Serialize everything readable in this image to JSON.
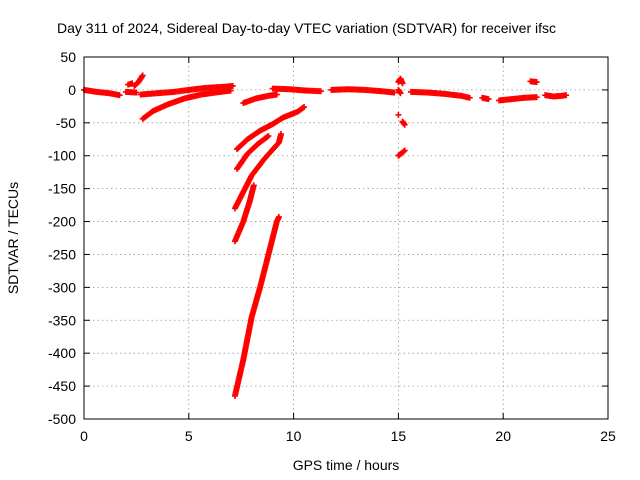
{
  "chart_data": {
    "type": "scatter",
    "title": "Day 311 of 2024, Sidereal Day-to-day VTEC variation (SDTVAR) for receiver ifsc",
    "xlabel": "GPS time / hours",
    "ylabel": "SDTVAR / TECUs",
    "xlim": [
      0,
      25
    ],
    "ylim": [
      -500,
      50
    ],
    "xticks": [
      0,
      5,
      10,
      15,
      20,
      25
    ],
    "yticks": [
      50,
      0,
      -50,
      -100,
      -150,
      -200,
      -250,
      -300,
      -350,
      -400,
      -450,
      -500
    ],
    "x_tick_labels": [
      "0",
      "5",
      "10",
      "15",
      "20",
      "25"
    ],
    "y_tick_labels": [
      "50",
      "0",
      "-50",
      "-100",
      "-150",
      "-200",
      "-250",
      "-300",
      "-350",
      "-400",
      "-450",
      "-500"
    ],
    "grid": true,
    "marker": "plus",
    "color": "#ff0000",
    "series": [
      {
        "arcs": [
          [
            [
              0.0,
              0
            ],
            [
              0.6,
              -3
            ],
            [
              1.2,
              -5
            ],
            [
              1.7,
              -8
            ]
          ],
          [
            [
              2.0,
              -3
            ],
            [
              2.5,
              -4
            ]
          ],
          [
            [
              2.7,
              -7
            ],
            [
              3.5,
              -5
            ],
            [
              4.3,
              -3
            ],
            [
              5.0,
              0
            ],
            [
              5.8,
              3
            ],
            [
              6.8,
              5
            ],
            [
              7.1,
              6
            ]
          ],
          [
            [
              2.8,
              -44
            ],
            [
              3.3,
              -32
            ],
            [
              4.0,
              -22
            ],
            [
              4.8,
              -13
            ],
            [
              5.6,
              -7
            ],
            [
              6.5,
              -3
            ],
            [
              7.0,
              -1
            ]
          ],
          [
            [
              2.1,
              8
            ],
            [
              2.3,
              10
            ]
          ],
          [
            [
              2.4,
              6
            ],
            [
              2.6,
              12
            ],
            [
              2.8,
              22
            ]
          ],
          [
            [
              7.6,
              -20
            ],
            [
              8.2,
              -13
            ],
            [
              8.8,
              -9
            ],
            [
              9.2,
              -7
            ]
          ],
          [
            [
              9.0,
              2
            ],
            [
              9.8,
              1
            ],
            [
              10.6,
              -1
            ],
            [
              11.3,
              -2
            ]
          ],
          [
            [
              11.8,
              0
            ],
            [
              12.6,
              1
            ],
            [
              13.4,
              0
            ],
            [
              14.2,
              -2
            ],
            [
              14.8,
              -4
            ]
          ],
          [
            [
              7.3,
              -90
            ],
            [
              7.8,
              -75
            ],
            [
              8.4,
              -62
            ],
            [
              9.0,
              -52
            ],
            [
              9.5,
              -42
            ],
            [
              10.2,
              -33
            ],
            [
              10.5,
              -26
            ]
          ],
          [
            [
              7.3,
              -120
            ],
            [
              7.8,
              -97
            ],
            [
              8.3,
              -82
            ],
            [
              8.8,
              -70
            ]
          ],
          [
            [
              7.2,
              -180
            ],
            [
              7.6,
              -155
            ],
            [
              8.0,
              -130
            ],
            [
              8.6,
              -105
            ],
            [
              9.3,
              -80
            ],
            [
              9.4,
              -67
            ]
          ],
          [
            [
              7.2,
              -230
            ],
            [
              7.6,
              -200
            ],
            [
              7.9,
              -170
            ],
            [
              8.1,
              -145
            ]
          ],
          [
            [
              7.2,
              -465
            ],
            [
              7.6,
              -410
            ],
            [
              8.0,
              -345
            ],
            [
              8.4,
              -300
            ],
            [
              8.8,
              -250
            ],
            [
              9.2,
              -200
            ],
            [
              9.3,
              -193
            ]
          ],
          [
            [
              15.0,
              12
            ],
            [
              15.1,
              17
            ],
            [
              15.2,
              10
            ]
          ],
          [
            [
              15.0,
              0
            ],
            [
              15.1,
              -5
            ]
          ],
          [
            [
              15.0,
              -38
            ]
          ],
          [
            [
              15.2,
              -48
            ],
            [
              15.3,
              -53
            ]
          ],
          [
            [
              15.0,
              -100
            ],
            [
              15.2,
              -95
            ],
            [
              15.3,
              -92
            ]
          ],
          [
            [
              15.6,
              -3
            ],
            [
              16.4,
              -4
            ],
            [
              17.2,
              -6
            ],
            [
              18.0,
              -9
            ],
            [
              18.4,
              -12
            ]
          ],
          [
            [
              19.0,
              -12
            ],
            [
              19.3,
              -14
            ]
          ],
          [
            [
              19.8,
              -16
            ],
            [
              20.4,
              -14
            ],
            [
              21.0,
              -12
            ],
            [
              21.6,
              -11
            ]
          ],
          [
            [
              21.3,
              13
            ],
            [
              21.6,
              12
            ]
          ],
          [
            [
              22.0,
              -8
            ],
            [
              22.4,
              -10
            ],
            [
              22.8,
              -9
            ],
            [
              23.0,
              -8
            ]
          ]
        ]
      }
    ]
  }
}
